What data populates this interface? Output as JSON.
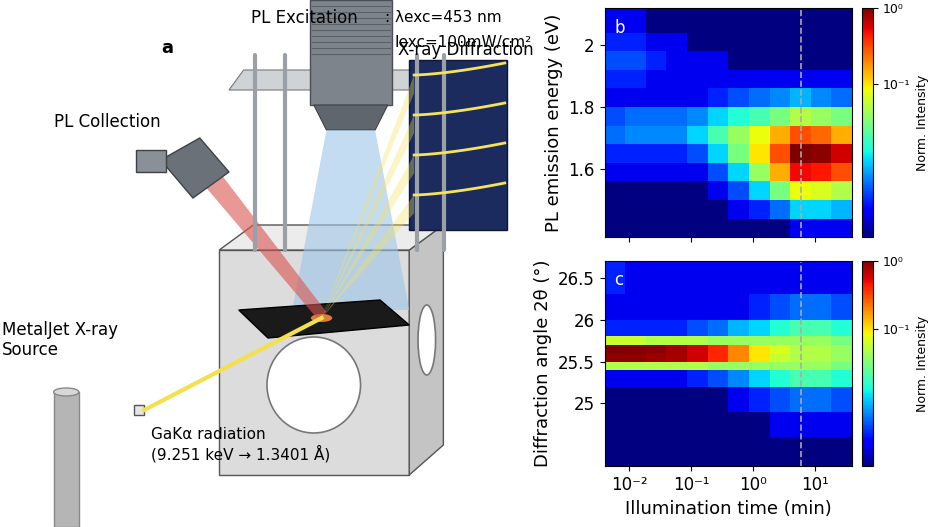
{
  "diagram": {
    "panel_label": "a",
    "texts": {
      "pl_excitation": "PL Excitation",
      "excitation_wavelength": ": λexc=453 nm",
      "excitation_intensity": "Iexc=100mW/cm²",
      "pl_collection": "PL Collection",
      "xray_diffraction": "X-ray Diffraction",
      "source": "MetalJet X-ray\nSource",
      "radiation": "GaKα radiation\n(9.251 keV → 1.3401 Å)"
    }
  },
  "chart_data": [
    {
      "type": "heatmap",
      "panel_label": "b",
      "y_label": "PL emission energy (eV)",
      "log": "x",
      "tick_labels": "y",
      "xlim": [
        0.004,
        40
      ],
      "xticks": [
        0.01,
        0.1,
        1,
        10
      ],
      "ylim": [
        1.38,
        2.12
      ],
      "yticks": [
        1.6,
        1.8,
        2
      ],
      "vline": 6,
      "x_edges": [
        0.004,
        0.0086,
        0.0186,
        0.04,
        0.086,
        0.186,
        0.4,
        0.86,
        1.86,
        4,
        8.6,
        18.6,
        40
      ],
      "y_edges": [
        1.38,
        1.44,
        1.5,
        1.56,
        1.62,
        1.68,
        1.74,
        1.8,
        1.86,
        1.92,
        1.98,
        2.04,
        2.12
      ],
      "cells": [
        [
          0.001,
          0.001,
          0.001,
          0.001,
          0.001,
          0.001,
          0.001,
          0.001,
          0.001,
          0.002,
          0.002,
          0.002
        ],
        [
          0.001,
          0.001,
          0.001,
          0.001,
          0.001,
          0.001,
          0.002,
          0.003,
          0.005,
          0.01,
          0.01,
          0.008
        ],
        [
          0.001,
          0.001,
          0.001,
          0.001,
          0.001,
          0.002,
          0.004,
          0.01,
          0.03,
          0.08,
          0.07,
          0.05
        ],
        [
          0.002,
          0.002,
          0.002,
          0.002,
          0.002,
          0.004,
          0.01,
          0.04,
          0.15,
          0.5,
          0.45,
          0.3
        ],
        [
          0.003,
          0.003,
          0.003,
          0.003,
          0.004,
          0.01,
          0.03,
          0.1,
          0.3,
          1,
          0.9,
          0.6
        ],
        [
          0.005,
          0.006,
          0.006,
          0.006,
          0.01,
          0.02,
          0.04,
          0.08,
          0.15,
          0.3,
          0.25,
          0.15
        ],
        [
          0.004,
          0.005,
          0.005,
          0.005,
          0.006,
          0.01,
          0.015,
          0.02,
          0.03,
          0.05,
          0.04,
          0.03
        ],
        [
          0.002,
          0.002,
          0.002,
          0.002,
          0.002,
          0.003,
          0.004,
          0.005,
          0.006,
          0.008,
          0.006,
          0.005
        ],
        [
          0.003,
          0.003,
          0.002,
          0.002,
          0.002,
          0.002,
          0.002,
          0.002,
          0.002,
          0.002,
          0.002,
          0.002
        ],
        [
          0.004,
          0.004,
          0.003,
          0.002,
          0.002,
          0.002,
          0.001,
          0.001,
          0.001,
          0.001,
          0.001,
          0.001
        ],
        [
          0.003,
          0.003,
          0.002,
          0.002,
          0.001,
          0.001,
          0.001,
          0.001,
          0.001,
          0.001,
          0.001,
          0.001
        ],
        [
          0.002,
          0.002,
          0.001,
          0.001,
          0.001,
          0.001,
          0.001,
          0.001,
          0.001,
          0.001,
          0.001,
          0.001
        ]
      ],
      "colorbar_range": [
        0.001,
        1
      ],
      "colorbar_ticks": [
        {
          "value": 0.1,
          "label": "10⁻¹"
        },
        {
          "value": 1,
          "label": "10⁰"
        }
      ],
      "colorbar_label": "Norm. Intensity"
    },
    {
      "type": "heatmap",
      "panel_label": "c",
      "y_label": "Diffraction angle 2θ (°)",
      "x_label": "Illumination time (min)",
      "log": "x",
      "xlim": [
        0.004,
        40
      ],
      "xticks": [
        {
          "value": 0.01,
          "label": "10⁻²"
        },
        {
          "value": 0.1,
          "label": "10⁻¹"
        },
        {
          "value": 1,
          "label": "10⁰"
        },
        {
          "value": 10,
          "label": "10¹"
        }
      ],
      "ylim": [
        24.25,
        26.7
      ],
      "yticks": [
        25,
        25.5,
        26,
        26.5
      ],
      "vline": 6,
      "x_edges": [
        0.004,
        0.0086,
        0.0186,
        0.04,
        0.086,
        0.186,
        0.4,
        0.86,
        1.86,
        4,
        8.6,
        18.6,
        40
      ],
      "y_edges": [
        24.25,
        24.6,
        24.9,
        25.2,
        25.4,
        25.5,
        25.6,
        25.7,
        25.8,
        26.0,
        26.3,
        26.7
      ],
      "cells": [
        [
          0.001,
          0.001,
          0.001,
          0.001,
          0.001,
          0.001,
          0.001,
          0.001,
          0.001,
          0.001,
          0.001,
          0.001
        ],
        [
          0.001,
          0.001,
          0.001,
          0.001,
          0.001,
          0.001,
          0.001,
          0.001,
          0.002,
          0.002,
          0.002,
          0.002
        ],
        [
          0.001,
          0.001,
          0.001,
          0.001,
          0.001,
          0.001,
          0.002,
          0.003,
          0.004,
          0.005,
          0.005,
          0.004
        ],
        [
          0.002,
          0.002,
          0.002,
          0.002,
          0.003,
          0.004,
          0.006,
          0.01,
          0.015,
          0.02,
          0.02,
          0.015
        ],
        [
          0.05,
          0.05,
          0.05,
          0.05,
          0.05,
          0.04,
          0.04,
          0.04,
          0.04,
          0.04,
          0.04,
          0.03
        ],
        [
          0.9,
          0.9,
          0.85,
          0.8,
          0.6,
          0.4,
          0.2,
          0.1,
          0.06,
          0.05,
          0.05,
          0.04
        ],
        [
          1,
          0.95,
          0.9,
          0.8,
          0.6,
          0.4,
          0.2,
          0.1,
          0.07,
          0.05,
          0.05,
          0.04
        ],
        [
          0.06,
          0.06,
          0.05,
          0.05,
          0.05,
          0.04,
          0.04,
          0.04,
          0.04,
          0.04,
          0.04,
          0.03
        ],
        [
          0.003,
          0.003,
          0.003,
          0.003,
          0.004,
          0.005,
          0.008,
          0.01,
          0.015,
          0.02,
          0.02,
          0.015
        ],
        [
          0.002,
          0.002,
          0.002,
          0.002,
          0.002,
          0.002,
          0.002,
          0.003,
          0.004,
          0.005,
          0.005,
          0.004
        ],
        [
          0.003,
          0.002,
          0.002,
          0.002,
          0.002,
          0.002,
          0.002,
          0.002,
          0.002,
          0.002,
          0.002,
          0.002
        ]
      ],
      "colorbar_range": [
        0.001,
        1
      ],
      "colorbar_ticks": [
        {
          "value": 0.1,
          "label": "10⁻¹"
        },
        {
          "value": 1,
          "label": "10⁰"
        }
      ],
      "colorbar_label": "Norm. Intensity"
    }
  ]
}
